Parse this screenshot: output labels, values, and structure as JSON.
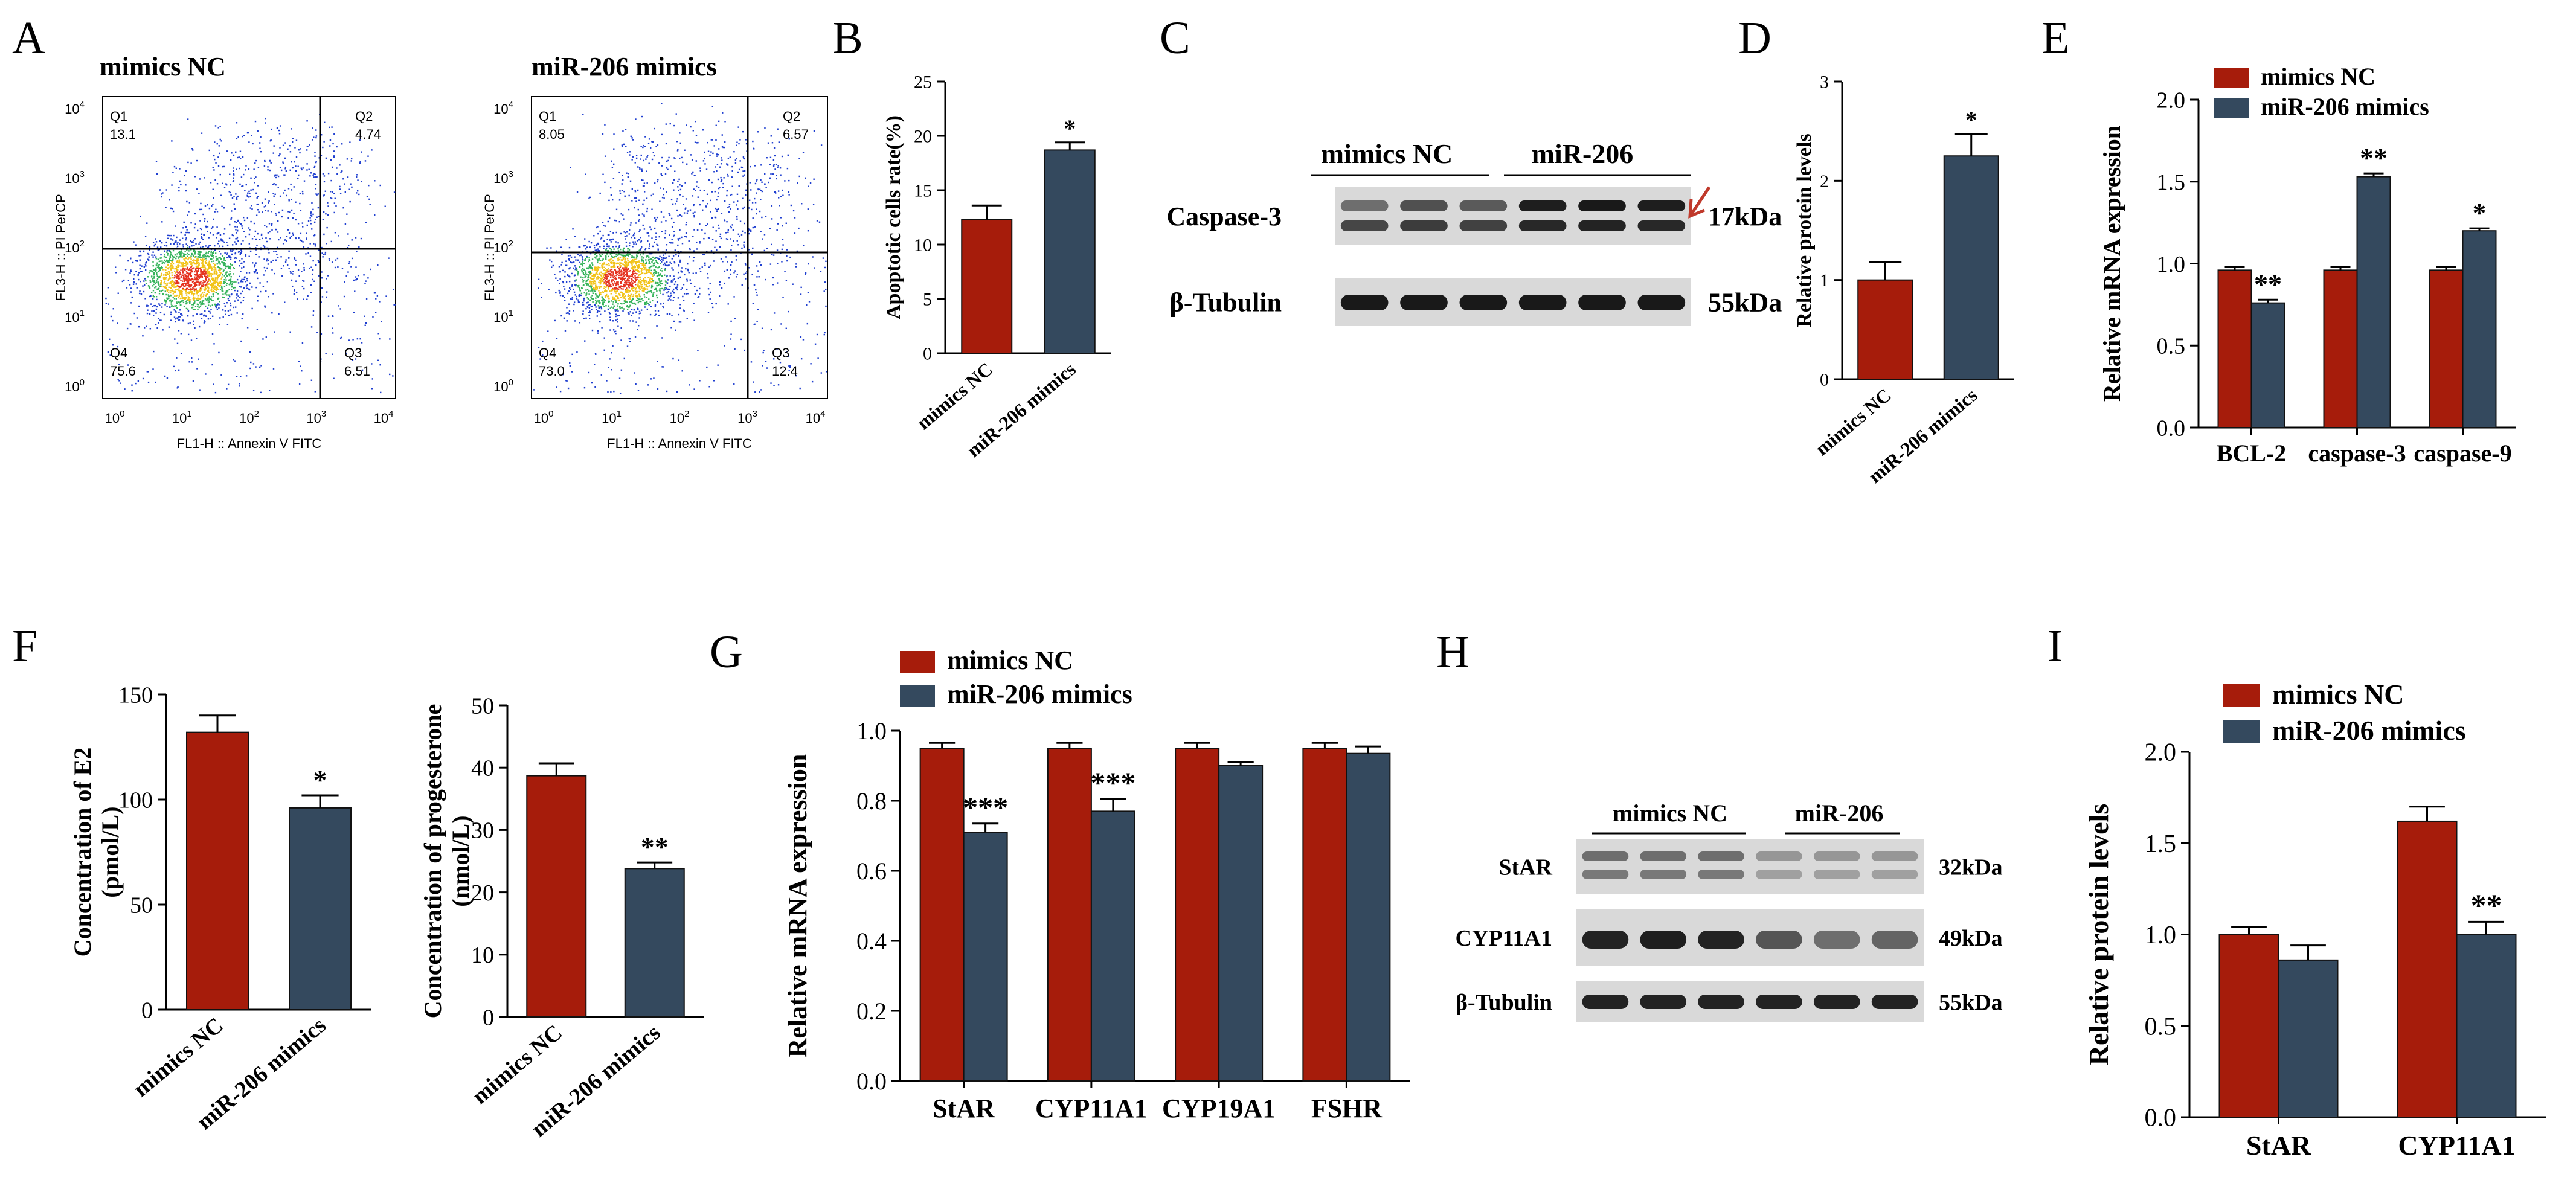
{
  "colors": {
    "nc": "#A61C0B",
    "mimic": "#34495E",
    "arrow": "#C0392B"
  },
  "panels": {
    "A": {
      "letter": "A",
      "x_label": "FL1-H :: Annexin V FITC",
      "y_label": "FL3-H :: PI PerCP",
      "ticks": [
        "10^0",
        "10^1",
        "10^2",
        "10^3",
        "10^4"
      ],
      "plots": [
        {
          "title": "mimics NC",
          "quadrants": [
            {
              "name": "Q1",
              "value": "13.1"
            },
            {
              "name": "Q2",
              "value": "4.74"
            },
            {
              "name": "Q3",
              "value": "6.51"
            },
            {
              "name": "Q4",
              "value": "75.6"
            }
          ]
        },
        {
          "title": "miR-206 mimics",
          "quadrants": [
            {
              "name": "Q1",
              "value": "8.05"
            },
            {
              "name": "Q2",
              "value": "6.57"
            },
            {
              "name": "Q3",
              "value": "12.4"
            },
            {
              "name": "Q4",
              "value": "73.0"
            }
          ]
        }
      ]
    },
    "C": {
      "letter": "C",
      "group_nc": "mimics NC",
      "group_mir": "miR-206",
      "rows": [
        {
          "protein": "Caspase-3",
          "kda": "17kDa"
        },
        {
          "protein": "β-Tubulin",
          "kda": "55kDa"
        }
      ]
    },
    "H": {
      "letter": "H",
      "group_nc": "mimics NC",
      "group_mir": "miR-206",
      "rows": [
        {
          "protein": "StAR",
          "kda": "32kDa"
        },
        {
          "protein": "CYP11A1",
          "kda": "49kDa"
        },
        {
          "protein": "β-Tubulin",
          "kda": "55kDa"
        }
      ]
    }
  },
  "chart_data": [
    {
      "id": "B",
      "letter": "B",
      "type": "bar",
      "categories": [
        "mimics NC",
        "miR-206 mimics"
      ],
      "values": [
        12.3,
        18.7
      ],
      "errors": [
        1.3,
        0.7
      ],
      "sig": [
        "",
        "*"
      ],
      "ylabel": "Apoptotic cells rate(%)",
      "ylim": [
        0,
        25
      ],
      "yticks": [
        0,
        5,
        10,
        15,
        20,
        25
      ]
    },
    {
      "id": "D",
      "letter": "D",
      "type": "bar",
      "categories": [
        "mimics NC",
        "miR-206 mimics"
      ],
      "values": [
        1.0,
        2.25
      ],
      "errors": [
        0.18,
        0.22
      ],
      "sig": [
        "",
        "*"
      ],
      "ylabel": "Relative  protein levels",
      "ylim": [
        0,
        3
      ],
      "yticks": [
        0,
        1,
        2,
        3
      ]
    },
    {
      "id": "E",
      "letter": "E",
      "type": "bar",
      "categories": [
        "BCL-2",
        "caspase-3",
        "caspase-9"
      ],
      "series": [
        {
          "name": "mimics NC",
          "values": [
            0.96,
            0.96,
            0.96
          ],
          "errors": [
            0.02,
            0.02,
            0.02
          ]
        },
        {
          "name": "miR-206 mimics",
          "values": [
            0.76,
            1.53,
            1.2
          ],
          "errors": [
            0.02,
            0.02,
            0.015
          ]
        }
      ],
      "sig": [
        "**",
        "**",
        "*"
      ],
      "ylabel": "Relative mRNA expression",
      "ylim": [
        0,
        2.0
      ],
      "yticks": [
        "0.0",
        "0.5",
        "1.0",
        "1.5",
        "2.0"
      ],
      "legend": "top-left"
    },
    {
      "id": "F1",
      "letter": "F",
      "type": "bar",
      "categories": [
        "mimics NC",
        "miR-206 mimics"
      ],
      "values": [
        132,
        96
      ],
      "errors": [
        8,
        6
      ],
      "sig": [
        "",
        "*"
      ],
      "ylabel": [
        "Concentration of E2",
        "(pmol/L)"
      ],
      "ylim": [
        0,
        150
      ],
      "yticks": [
        0,
        50,
        100,
        150
      ]
    },
    {
      "id": "F2",
      "letter": "",
      "type": "bar",
      "categories": [
        "mimics NC",
        "miR-206 mimics"
      ],
      "values": [
        38.7,
        23.8
      ],
      "errors": [
        2.0,
        1.0
      ],
      "sig": [
        "",
        "**"
      ],
      "ylabel": [
        "Concentration of progesterone",
        "(nmol/L)"
      ],
      "ylim": [
        0,
        50
      ],
      "yticks": [
        0,
        10,
        20,
        30,
        40,
        50
      ]
    },
    {
      "id": "G",
      "letter": "G",
      "type": "bar",
      "categories": [
        "StAR",
        "CYP11A1",
        "CYP19A1",
        "FSHR"
      ],
      "series": [
        {
          "name": "mimics NC",
          "values": [
            0.95,
            0.95,
            0.95,
            0.95
          ],
          "errors": [
            0.015,
            0.015,
            0.015,
            0.015
          ]
        },
        {
          "name": "miR-206 mimics",
          "values": [
            0.71,
            0.77,
            0.9,
            0.935
          ],
          "errors": [
            0.025,
            0.035,
            0.01,
            0.02
          ]
        }
      ],
      "sig": [
        "***",
        "***",
        "",
        ""
      ],
      "ylabel": "Relative mRNA expression",
      "ylim": [
        0,
        1.0
      ],
      "yticks": [
        "0.0",
        "0.2",
        "0.4",
        "0.6",
        "0.8",
        "1.0"
      ],
      "legend": "top-left"
    },
    {
      "id": "I",
      "letter": "I",
      "type": "bar",
      "categories": [
        "StAR",
        "CYP11A1"
      ],
      "series": [
        {
          "name": "mimics NC",
          "values": [
            1.0,
            1.62
          ],
          "errors": [
            0.04,
            0.08
          ]
        },
        {
          "name": "miR-206 mimics",
          "values": [
            0.86,
            1.0
          ],
          "errors": [
            0.08,
            0.07
          ]
        }
      ],
      "sig": [
        "",
        "**"
      ],
      "ylabel": "Relative  protein levels",
      "ylim": [
        0,
        2.0
      ],
      "yticks": [
        "0.0",
        "0.5",
        "1.0",
        "1.5",
        "2.0"
      ],
      "legend": "top-left"
    }
  ]
}
